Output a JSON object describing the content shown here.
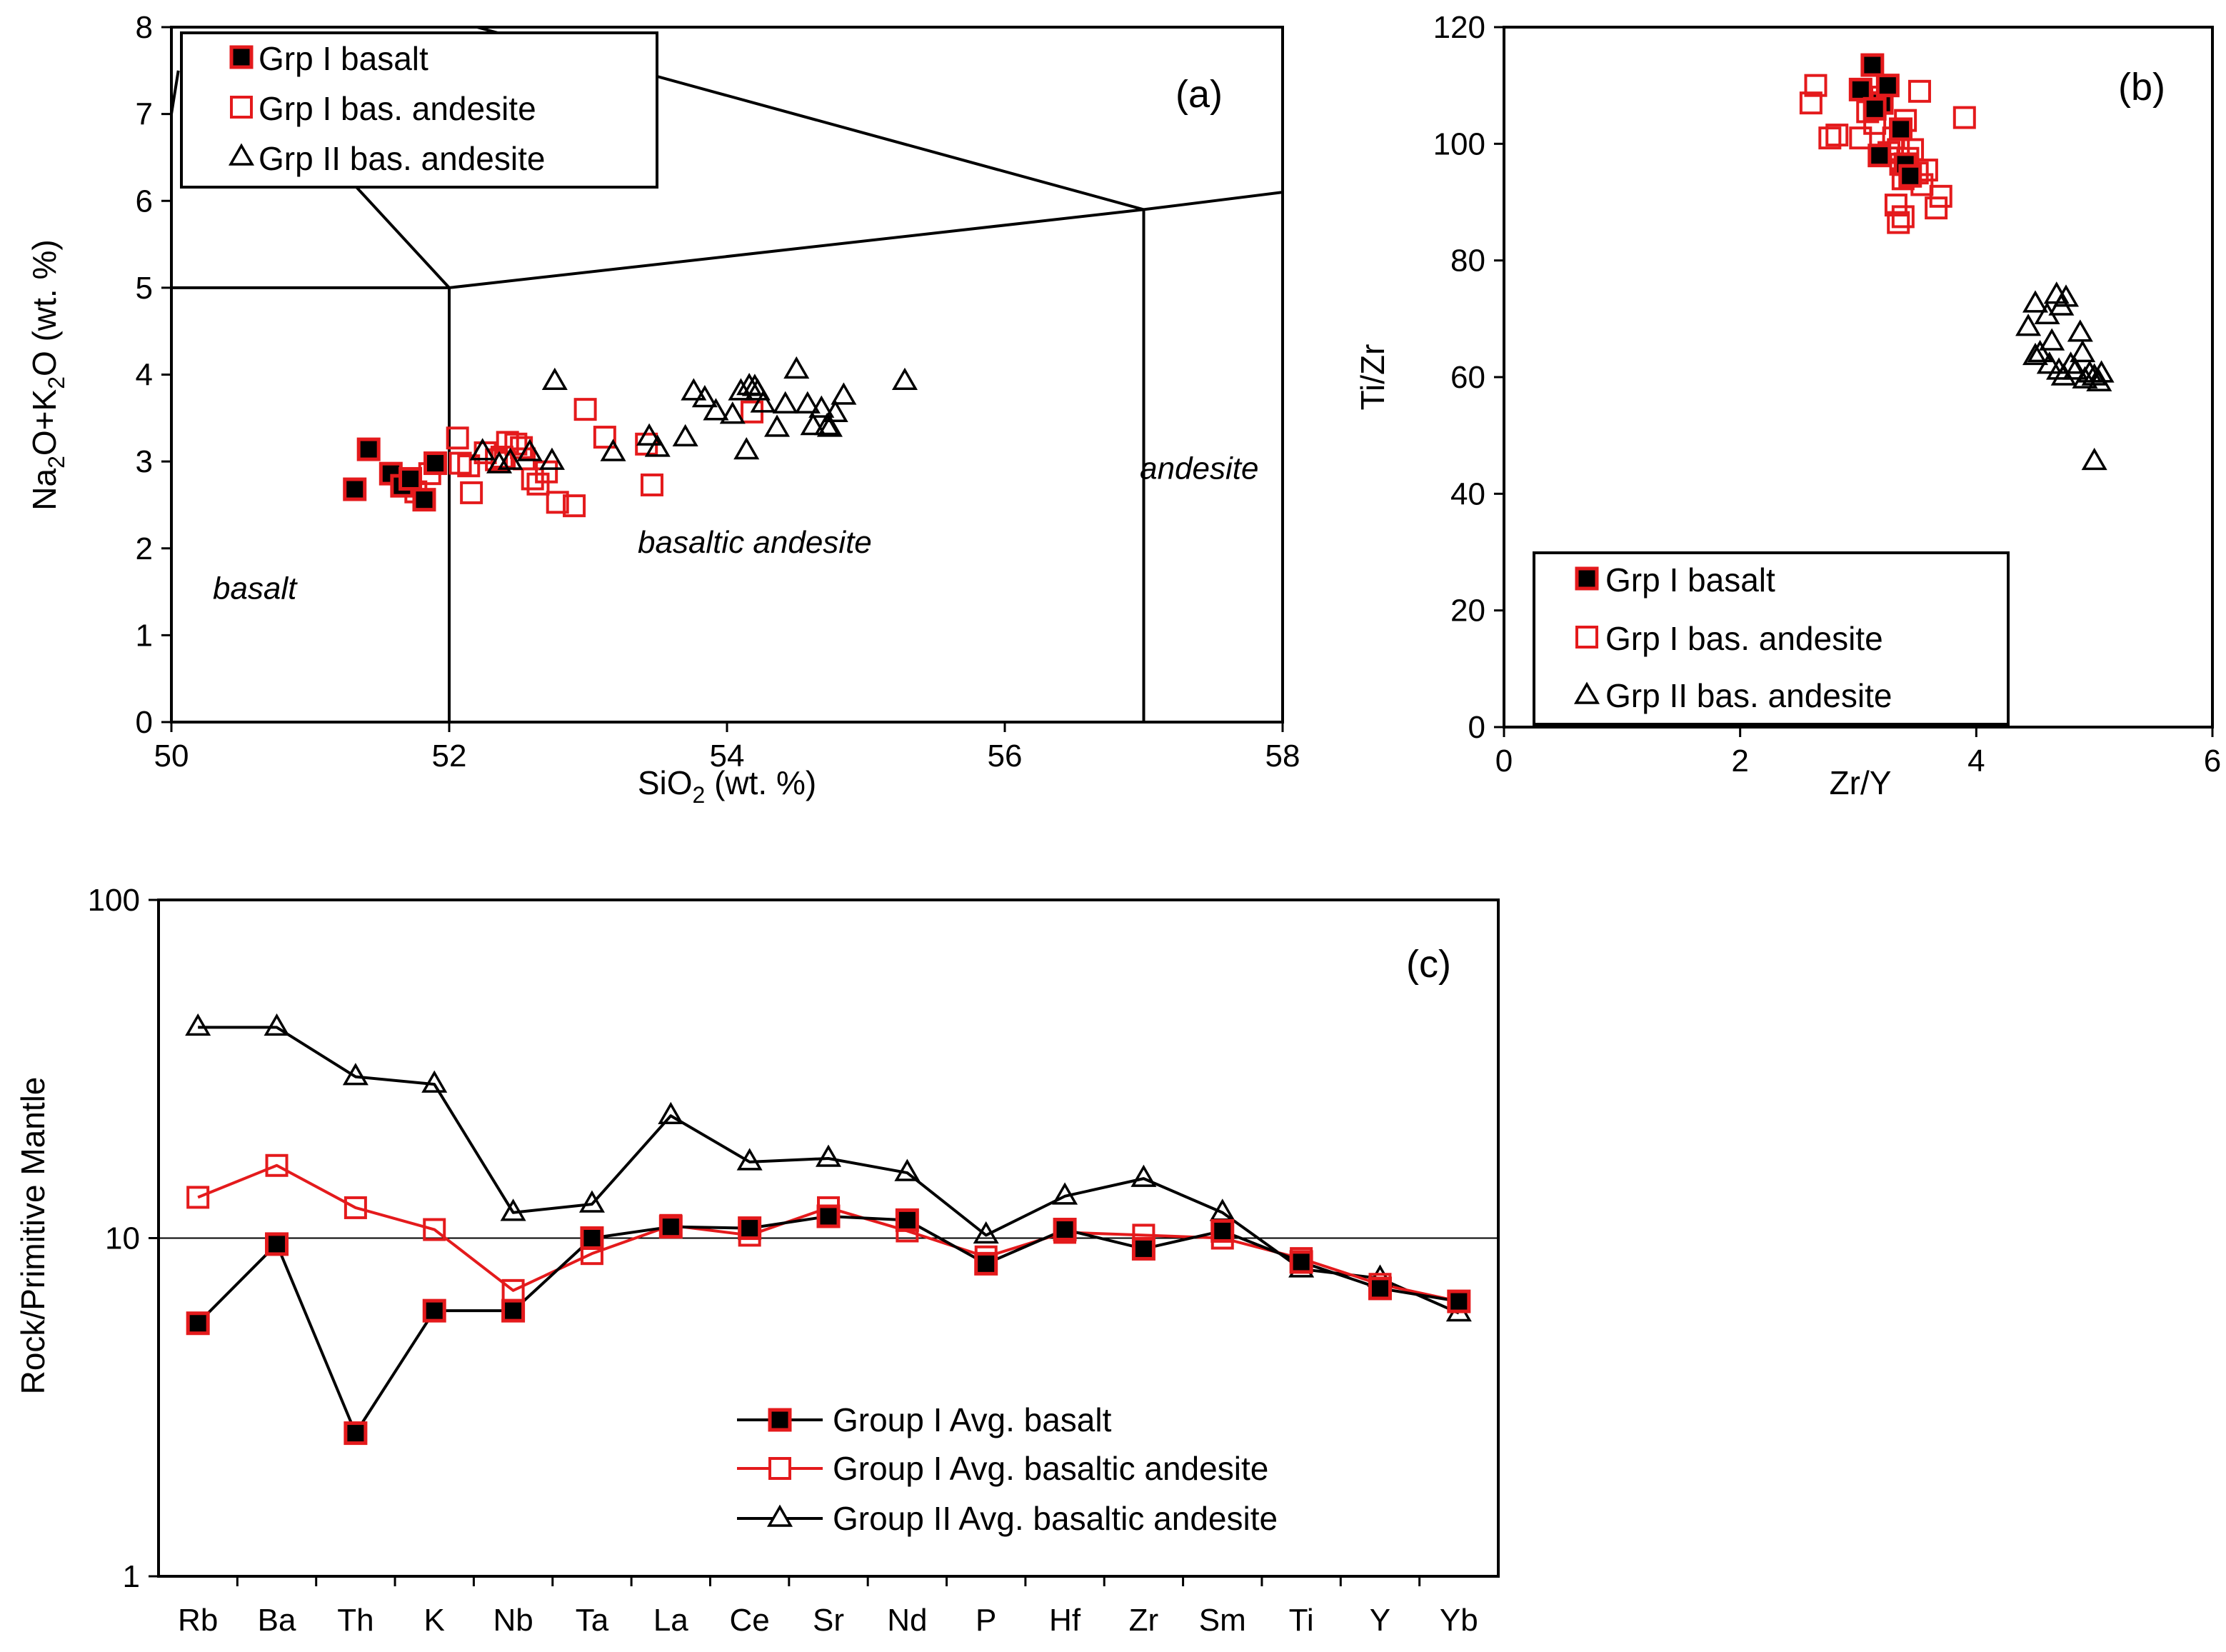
{
  "chart_data": [
    {
      "type": "scatter",
      "panel_label": "(a)",
      "xlabel_prefix": "SiO",
      "xlabel_sub": "2",
      "xlabel_suffix": " (wt. %)",
      "ylabel_parts": [
        "Na",
        "2",
        "O+K",
        "2",
        "O (wt. %)"
      ],
      "xlim": [
        50,
        58
      ],
      "ylim": [
        0,
        8
      ],
      "xticks": [
        50,
        52,
        54,
        56,
        58
      ],
      "yticks": [
        0,
        1,
        2,
        3,
        4,
        5,
        6,
        7,
        8
      ],
      "legend": [
        "Grp I basalt",
        "Grp I bas. andesite",
        "Grp II bas. andesite"
      ],
      "field_labels": [
        {
          "text": "basalt",
          "x": 50.6,
          "y": 1.42
        },
        {
          "text": "basaltic andesite",
          "x": 54.2,
          "y": 1.95
        },
        {
          "text": "andesite",
          "x": 57.4,
          "y": 2.8
        }
      ],
      "field_lines": [
        [
          [
            50,
            7.0
          ],
          [
            50.05,
            7.5
          ]
        ],
        [
          [
            50.5,
            7.6
          ],
          [
            52,
            5
          ]
        ],
        [
          [
            50,
            5
          ],
          [
            52,
            5
          ]
        ],
        [
          [
            52,
            5
          ],
          [
            52,
            0
          ]
        ],
        [
          [
            52,
            5
          ],
          [
            57,
            5.9
          ]
        ],
        [
          [
            57,
            5.9
          ],
          [
            57,
            0
          ]
        ],
        [
          [
            57,
            5.9
          ],
          [
            58,
            6.1
          ]
        ],
        [
          [
            52.2,
            8
          ],
          [
            57,
            5.9
          ]
        ]
      ],
      "series": [
        {
          "name": "Grp I basalt",
          "points": [
            [
              51.32,
              2.68
            ],
            [
              51.42,
              3.14
            ],
            [
              51.58,
              2.86
            ],
            [
              51.66,
              2.72
            ],
            [
              51.72,
              2.8
            ],
            [
              51.82,
              2.56
            ],
            [
              51.9,
              2.98
            ]
          ]
        },
        {
          "name": "Grp I bas. andesite",
          "points": [
            [
              51.68,
              2.76
            ],
            [
              51.76,
              2.65
            ],
            [
              51.86,
              2.86
            ],
            [
              52.06,
              3.27
            ],
            [
              52.08,
              2.98
            ],
            [
              52.14,
              2.95
            ],
            [
              52.16,
              2.64
            ],
            [
              52.26,
              3.1
            ],
            [
              52.34,
              3.02
            ],
            [
              52.38,
              3.05
            ],
            [
              52.42,
              3.22
            ],
            [
              52.48,
              3.2
            ],
            [
              52.52,
              3.16
            ],
            [
              52.54,
              3.03
            ],
            [
              52.6,
              2.8
            ],
            [
              52.64,
              2.74
            ],
            [
              52.7,
              2.88
            ],
            [
              52.78,
              2.53
            ],
            [
              52.9,
              2.49
            ],
            [
              52.98,
              3.6
            ],
            [
              53.12,
              3.28
            ],
            [
              53.42,
              3.2
            ],
            [
              53.46,
              2.73
            ],
            [
              54.18,
              3.57
            ]
          ]
        },
        {
          "name": "Grp II bas. andesite",
          "points": [
            [
              52.76,
              3.92
            ],
            [
              52.24,
              3.11
            ],
            [
              52.36,
              2.96
            ],
            [
              52.44,
              3.0
            ],
            [
              52.58,
              3.1
            ],
            [
              52.74,
              3.0
            ],
            [
              53.18,
              3.1
            ],
            [
              53.44,
              3.28
            ],
            [
              53.5,
              3.15
            ],
            [
              53.7,
              3.27
            ],
            [
              53.76,
              3.8
            ],
            [
              53.84,
              3.72
            ],
            [
              53.92,
              3.57
            ],
            [
              54.04,
              3.53
            ],
            [
              54.1,
              3.8
            ],
            [
              54.16,
              3.86
            ],
            [
              54.2,
              3.85
            ],
            [
              54.22,
              3.8
            ],
            [
              54.26,
              3.66
            ],
            [
              54.14,
              3.12
            ],
            [
              54.36,
              3.38
            ],
            [
              54.42,
              3.65
            ],
            [
              54.5,
              4.05
            ],
            [
              54.58,
              3.65
            ],
            [
              54.68,
              3.6
            ],
            [
              54.72,
              3.4
            ],
            [
              54.74,
              3.38
            ],
            [
              54.78,
              3.55
            ],
            [
              54.84,
              3.75
            ],
            [
              54.62,
              3.4
            ],
            [
              55.28,
              3.92
            ]
          ]
        }
      ]
    },
    {
      "type": "scatter",
      "panel_label": "(b)",
      "xlabel": "Zr/Y",
      "ylabel": "Ti/Zr",
      "xlim": [
        0,
        6
      ],
      "ylim": [
        0,
        120
      ],
      "xticks": [
        0,
        2,
        4,
        6
      ],
      "yticks": [
        0,
        20,
        40,
        60,
        80,
        100,
        120
      ],
      "legend": [
        "Grp I basalt",
        "Grp I bas. andesite",
        "Grp II bas. andesite"
      ],
      "series": [
        {
          "name": "Grp I basalt",
          "points": [
            [
              3.12,
              113.5
            ],
            [
              3.02,
              109.3
            ],
            [
              3.2,
              107
            ],
            [
              3.25,
              110
            ],
            [
              3.14,
              106
            ],
            [
              3.36,
              102.5
            ],
            [
              3.18,
              98
            ],
            [
              3.4,
              96.5
            ],
            [
              3.44,
              94.5
            ]
          ]
        },
        {
          "name": "Grp I bas. andesite",
          "points": [
            [
              2.6,
              107
            ],
            [
              2.64,
              110
            ],
            [
              2.76,
              101
            ],
            [
              2.82,
              101.5
            ],
            [
              3.02,
              101
            ],
            [
              3.08,
              105.5
            ],
            [
              3.14,
              103.5
            ],
            [
              3.2,
              108
            ],
            [
              3.26,
              98.5
            ],
            [
              3.3,
              101
            ],
            [
              3.34,
              99
            ],
            [
              3.36,
              96.5
            ],
            [
              3.38,
              94
            ],
            [
              3.4,
              104
            ],
            [
              3.42,
              97.5
            ],
            [
              3.46,
              99
            ],
            [
              3.5,
              95
            ],
            [
              3.54,
              93
            ],
            [
              3.58,
              95.5
            ],
            [
              3.52,
              109
            ],
            [
              3.32,
              89.5
            ],
            [
              3.34,
              86.5
            ],
            [
              3.38,
              87.5
            ],
            [
              3.66,
              89
            ],
            [
              3.7,
              91
            ],
            [
              3.9,
              104.5
            ]
          ]
        },
        {
          "name": "Grp II bas. andesite",
          "points": [
            [
              4.44,
              68.5
            ],
            [
              4.5,
              72.5
            ],
            [
              4.54,
              64
            ],
            [
              4.6,
              70.5
            ],
            [
              4.64,
              66
            ],
            [
              4.68,
              74
            ],
            [
              4.72,
              72
            ],
            [
              4.76,
              73.5
            ],
            [
              4.62,
              62
            ],
            [
              4.7,
              61
            ],
            [
              4.74,
              60
            ],
            [
              4.8,
              62
            ],
            [
              4.84,
              61
            ],
            [
              4.88,
              67.5
            ],
            [
              4.92,
              59.5
            ],
            [
              4.9,
              64
            ],
            [
              4.96,
              60.5
            ],
            [
              5.0,
              60
            ],
            [
              5.04,
              59
            ],
            [
              5.06,
              60.5
            ],
            [
              4.5,
              63.5
            ],
            [
              5.0,
              45.5
            ]
          ]
        }
      ]
    },
    {
      "type": "line",
      "panel_label": "(c)",
      "ylabel": "Rock/Primitive Mantle",
      "yscale": "log",
      "ylim": [
        1,
        100
      ],
      "yticks": [
        1,
        10,
        100
      ],
      "reference_y": 10,
      "categories": [
        "Rb",
        "Ba",
        "Th",
        "K",
        "Nb",
        "Ta",
        "La",
        "Ce",
        "Sr",
        "Nd",
        "P",
        "Hf",
        "Zr",
        "Sm",
        "Ti",
        "Y",
        "Yb"
      ],
      "series": [
        {
          "name": "Group I Avg. basalt",
          "values": [
            5.6,
            9.6,
            2.65,
            6.1,
            6.1,
            10,
            10.8,
            10.7,
            11.6,
            11.3,
            8.4,
            10.6,
            9.3,
            10.5,
            8.5,
            7.1,
            6.5
          ]
        },
        {
          "name": "Group I Avg. basaltic andesite",
          "values": [
            13.2,
            16.4,
            12.3,
            10.6,
            7.0,
            9.0,
            10.9,
            10.2,
            12.3,
            10.5,
            8.8,
            10.4,
            10.2,
            10.0,
            8.7,
            7.3,
            6.5
          ]
        },
        {
          "name": "Group II Avg. basaltic andesite",
          "values": [
            42,
            42,
            30,
            28.5,
            11.9,
            12.6,
            23,
            16.8,
            17.2,
            15.6,
            10.2,
            13.3,
            15,
            11.9,
            8.1,
            7.6,
            6.0
          ]
        }
      ]
    }
  ],
  "style": {
    "basalt_fill": "#000000",
    "red": "#e41a1c",
    "black": "#000000"
  }
}
